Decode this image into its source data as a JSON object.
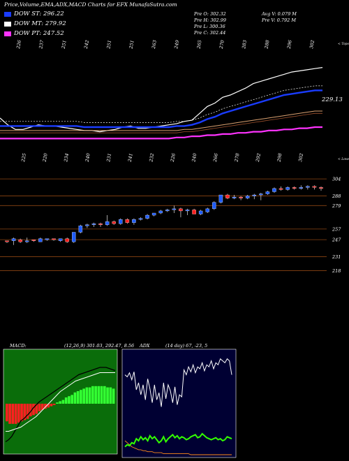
{
  "title": "Price,Volume,EMA,ADX,MACD Charts for EFX  MunafaSutra.com",
  "legend": [
    {
      "label": "DOW ST: 296.22",
      "color": "#1a3cff"
    },
    {
      "label": "DOW MT: 279.92",
      "color": "#ffffff"
    },
    {
      "label": "DOW PT: 247.52",
      "color": "#ff33ff"
    }
  ],
  "quote": {
    "left": [
      "Pre  O: 302.32",
      "Pre  H: 302.99",
      "Pre  L: 300.36",
      "Pre  C: 302.44"
    ],
    "right": [
      "Avg V: 0.079  M",
      "Pre  V: 0.792  M"
    ]
  },
  "colors": {
    "ema_fast": "#1a3cff",
    "ema_slow": "#ff33ff",
    "price_line": "#ffffff",
    "up_candle": "#1e5cff",
    "down_candle": "#ff2020",
    "grid_line": "#8b4513",
    "macd_bg": "#0a6d0a",
    "adx_bg": "#000033"
  },
  "chart_data": [
    {
      "type": "line",
      "panel": "ema",
      "top_labels": [
        "226",
        "237",
        "251",
        "242",
        "251",
        "251",
        "263",
        "249",
        "265",
        "270",
        "283",
        "288",
        "296",
        "302"
      ],
      "top_right_tag": "< Tops",
      "bottom_labels": [
        "225",
        "220",
        "234",
        "240",
        "231",
        "241",
        "232",
        "226",
        "240",
        "266",
        "278",
        "292",
        "298",
        "302"
      ],
      "bottom_right_tag": "< Lows",
      "price_label": "229.13",
      "series": [
        {
          "values": [
            232,
            226,
            222,
            222,
            224,
            226,
            225,
            225,
            224,
            223,
            222,
            221,
            221,
            220,
            221,
            222,
            224,
            225,
            223,
            223,
            224,
            225,
            226,
            227,
            229,
            230,
            236,
            242,
            245,
            250,
            252,
            255,
            258,
            262,
            264,
            266,
            268,
            270,
            272,
            273,
            274,
            275,
            276
          ]
        },
        {
          "values": [
            225,
            225,
            225,
            225,
            225,
            225,
            225,
            225,
            225,
            225,
            225,
            224,
            224,
            224,
            224,
            224,
            224,
            224,
            224,
            224,
            224,
            224,
            224,
            225,
            225,
            226,
            228,
            231,
            233,
            236,
            238,
            240,
            242,
            244,
            246,
            248,
            250,
            252,
            253,
            254,
            255,
            256,
            256
          ]
        },
        {
          "values": [
            221,
            221,
            221,
            221,
            221,
            221,
            221,
            221,
            221,
            221,
            221,
            221,
            221,
            221,
            221,
            221,
            221,
            221,
            221,
            221,
            221,
            221,
            221,
            221,
            222,
            222,
            223,
            224,
            225,
            226,
            227,
            228,
            229,
            230,
            231,
            232,
            233,
            234,
            235,
            236,
            237,
            238,
            238
          ]
        },
        {
          "values": [
            214,
            214,
            214,
            214,
            214,
            214,
            214,
            214,
            214,
            214,
            214,
            214,
            214,
            214,
            214,
            214,
            214,
            214,
            214,
            214,
            214,
            214,
            214,
            215,
            215,
            216,
            216,
            217,
            217,
            218,
            218,
            219,
            219,
            220,
            220,
            221,
            221,
            222,
            222,
            223,
            223,
            224,
            224
          ]
        }
      ]
    },
    {
      "type": "bar",
      "panel": "price",
      "y_labels": [
        "304",
        "288",
        "279",
        "257",
        "247",
        "231",
        "218"
      ],
      "candles": [
        {
          "o": 245,
          "c": 246,
          "h": 246,
          "l": 244,
          "up": false
        },
        {
          "o": 246,
          "c": 248,
          "h": 249,
          "l": 242,
          "up": true
        },
        {
          "o": 247,
          "c": 245,
          "h": 248,
          "l": 244,
          "up": false
        },
        {
          "o": 245,
          "c": 246,
          "h": 249,
          "l": 244,
          "up": true
        },
        {
          "o": 246,
          "c": 247,
          "h": 247,
          "l": 245,
          "up": false
        },
        {
          "o": 245,
          "c": 248,
          "h": 249,
          "l": 245,
          "up": true
        },
        {
          "o": 247,
          "c": 248,
          "h": 248,
          "l": 246,
          "up": true
        },
        {
          "o": 248,
          "c": 247,
          "h": 248,
          "l": 246,
          "up": false
        },
        {
          "o": 246,
          "c": 248,
          "h": 248,
          "l": 245,
          "up": true
        },
        {
          "o": 248,
          "c": 245,
          "h": 249,
          "l": 244,
          "up": false
        },
        {
          "o": 245,
          "c": 254,
          "h": 254,
          "l": 244,
          "up": true
        },
        {
          "o": 254,
          "c": 260,
          "h": 261,
          "l": 253,
          "up": true
        },
        {
          "o": 260,
          "c": 261,
          "h": 262,
          "l": 258,
          "up": true
        },
        {
          "o": 261,
          "c": 262,
          "h": 263,
          "l": 259,
          "up": true
        },
        {
          "o": 262,
          "c": 261,
          "h": 263,
          "l": 259,
          "up": false
        },
        {
          "o": 261,
          "c": 264,
          "h": 270,
          "l": 260,
          "up": true
        },
        {
          "o": 264,
          "c": 262,
          "h": 265,
          "l": 261,
          "up": false
        },
        {
          "o": 262,
          "c": 266,
          "h": 267,
          "l": 261,
          "up": true
        },
        {
          "o": 266,
          "c": 263,
          "h": 267,
          "l": 262,
          "up": false
        },
        {
          "o": 263,
          "c": 266,
          "h": 267,
          "l": 261,
          "up": true
        },
        {
          "o": 266,
          "c": 267,
          "h": 268,
          "l": 265,
          "up": true
        },
        {
          "o": 267,
          "c": 270,
          "h": 271,
          "l": 266,
          "up": true
        },
        {
          "o": 270,
          "c": 272,
          "h": 272,
          "l": 269,
          "up": true
        },
        {
          "o": 272,
          "c": 274,
          "h": 275,
          "l": 271,
          "up": true
        },
        {
          "o": 274,
          "c": 275,
          "h": 276,
          "l": 273,
          "up": true
        },
        {
          "o": 275,
          "c": 276,
          "h": 279,
          "l": 272,
          "up": true
        },
        {
          "o": 276,
          "c": 274,
          "h": 277,
          "l": 268,
          "up": false
        },
        {
          "o": 274,
          "c": 275,
          "h": 276,
          "l": 270,
          "up": true
        },
        {
          "o": 275,
          "c": 271,
          "h": 276,
          "l": 271,
          "up": false
        },
        {
          "o": 271,
          "c": 274,
          "h": 275,
          "l": 270,
          "up": true
        },
        {
          "o": 273,
          "c": 276,
          "h": 277,
          "l": 272,
          "up": true
        },
        {
          "o": 276,
          "c": 282,
          "h": 283,
          "l": 275,
          "up": true
        },
        {
          "o": 282,
          "c": 289,
          "h": 289,
          "l": 281,
          "up": true
        },
        {
          "o": 289,
          "c": 286,
          "h": 290,
          "l": 285,
          "up": false
        },
        {
          "o": 286,
          "c": 287,
          "h": 289,
          "l": 285,
          "up": true
        },
        {
          "o": 287,
          "c": 286,
          "h": 288,
          "l": 284,
          "up": false
        },
        {
          "o": 286,
          "c": 288,
          "h": 289,
          "l": 285,
          "up": true
        },
        {
          "o": 288,
          "c": 289,
          "h": 290,
          "l": 285,
          "up": true
        },
        {
          "o": 289,
          "c": 290,
          "h": 291,
          "l": 284,
          "up": true
        },
        {
          "o": 290,
          "c": 292,
          "h": 293,
          "l": 289,
          "up": true
        },
        {
          "o": 292,
          "c": 295,
          "h": 296,
          "l": 291,
          "up": true
        },
        {
          "o": 295,
          "c": 294,
          "h": 297,
          "l": 293,
          "up": false
        },
        {
          "o": 294,
          "c": 296,
          "h": 297,
          "l": 293,
          "up": true
        },
        {
          "o": 296,
          "c": 295,
          "h": 297,
          "l": 294,
          "up": false
        },
        {
          "o": 295,
          "c": 296,
          "h": 298,
          "l": 294,
          "up": true
        },
        {
          "o": 296,
          "c": 297,
          "h": 298,
          "l": 294,
          "up": true
        },
        {
          "o": 297,
          "c": 296,
          "h": 298,
          "l": 294,
          "up": false
        },
        {
          "o": 296,
          "c": 295,
          "h": 297,
          "l": 293,
          "up": false
        }
      ]
    },
    {
      "type": "bar",
      "panel": "macd",
      "label": "MACD:",
      "value": "(12,26,9) 301.03, 292.47, 8.56",
      "histogram": [
        -14,
        -16,
        -16,
        -16,
        -15,
        -14,
        -13,
        -12,
        -10,
        -9,
        -8,
        -6,
        -5,
        -4,
        -3,
        -2,
        -1,
        1,
        2,
        3,
        5,
        6,
        7,
        9,
        10,
        11,
        12,
        13,
        13,
        14,
        14,
        14,
        14,
        14,
        13,
        13,
        12
      ],
      "series": [
        {
          "values": [
            -40,
            -38,
            -35,
            -30,
            -25,
            -20,
            -18,
            -15,
            -12,
            -8,
            -5,
            -2,
            0,
            2,
            4,
            6,
            8,
            10,
            12,
            14,
            16,
            18,
            20,
            22,
            24,
            25,
            26,
            27,
            28,
            29,
            30,
            31,
            31,
            31,
            30,
            29,
            28
          ]
        },
        {
          "values": [
            -30,
            -30,
            -29,
            -28,
            -27,
            -26,
            -24,
            -22,
            -20,
            -18,
            -16,
            -13,
            -10,
            -7,
            -4,
            -1,
            2,
            5,
            8,
            10,
            12,
            14,
            16,
            18,
            19,
            20,
            21,
            22,
            23,
            24,
            25,
            26,
            26,
            26,
            26,
            26,
            26
          ]
        }
      ]
    },
    {
      "type": "line",
      "panel": "adx",
      "label": "ADX",
      "value": "(14  day) 67,  -23,  5",
      "series": [
        {
          "values": [
            80,
            78,
            82,
            75,
            83,
            65,
            72,
            60,
            70,
            55,
            76,
            66,
            52,
            70,
            55,
            62,
            48,
            72,
            56,
            70,
            64,
            52,
            68,
            50,
            60,
            58,
            85,
            80,
            88,
            83,
            90,
            82,
            88,
            86,
            92,
            84,
            90,
            88,
            94,
            86,
            92,
            90,
            96,
            94,
            92,
            96,
            94,
            80
          ]
        },
        {
          "values": [
            14,
            12,
            10,
            8,
            7,
            6,
            5,
            5,
            4,
            4,
            3,
            3,
            3,
            2,
            2,
            2,
            2,
            1,
            1,
            1,
            1,
            1,
            1,
            1,
            1,
            1,
            1,
            1,
            1,
            0,
            0,
            0,
            0,
            0,
            0,
            0,
            0,
            0,
            0,
            0,
            0,
            0,
            0,
            0,
            0,
            0,
            0,
            0
          ]
        },
        {
          "values": [
            8,
            10,
            9,
            12,
            11,
            16,
            14,
            18,
            15,
            17,
            14,
            19,
            16,
            18,
            15,
            12,
            14,
            18,
            13,
            16,
            18,
            20,
            17,
            19,
            16,
            18,
            17,
            15,
            16,
            18,
            19,
            20,
            17,
            18,
            21,
            19,
            17,
            16,
            15,
            16,
            17,
            15,
            16,
            14,
            15,
            18,
            17,
            16
          ]
        }
      ]
    }
  ]
}
